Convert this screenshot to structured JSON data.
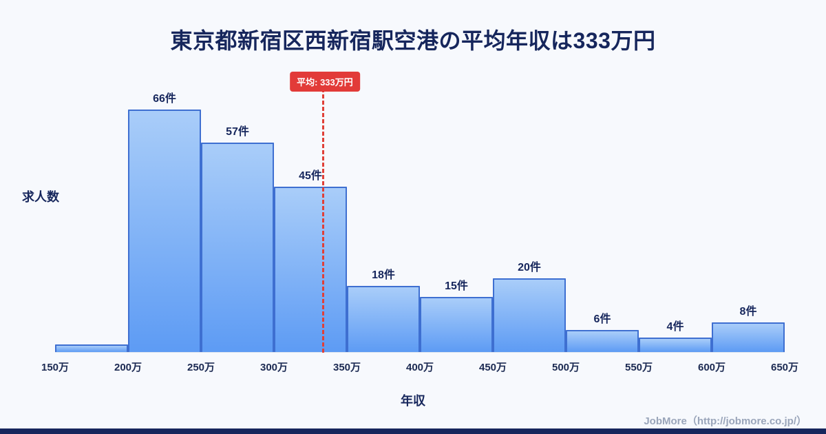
{
  "title": "東京都新宿区西新宿駅空港の平均年収は333万円",
  "y_axis_label": "求人数",
  "x_axis_label": "年収",
  "average": {
    "badge_label": "平均: 333万円",
    "value": 333
  },
  "footer": {
    "credit": "JobMore（http://jobmore.co.jp/）"
  },
  "colors": {
    "background": "#f7f9fd",
    "title_navy": "#16265c",
    "bar_fill_top": "#a9cdf9",
    "bar_fill_bottom": "#5d9bf4",
    "bar_border": "#3e6fd1",
    "average_red": "#e23b38",
    "footer_gray": "#9aa5ba",
    "bottom_strip_navy": "#16265c"
  },
  "chart_data": {
    "type": "bar",
    "title": "東京都新宿区西新宿駅空港の平均年収は333万円",
    "xlabel": "年収",
    "ylabel": "求人数",
    "x_ticks": [
      "150万",
      "200万",
      "250万",
      "300万",
      "350万",
      "400万",
      "450万",
      "500万",
      "550万",
      "600万",
      "650万"
    ],
    "x_tick_values": [
      150,
      200,
      250,
      300,
      350,
      400,
      450,
      500,
      550,
      600,
      650
    ],
    "x_range": [
      150,
      650
    ],
    "bins": [
      "150万-200万",
      "200万-250万",
      "250万-300万",
      "300万-350万",
      "350万-400万",
      "400万-450万",
      "450万-500万",
      "500万-550万",
      "550万-600万",
      "600万-650万"
    ],
    "counts": [
      2,
      66,
      57,
      45,
      18,
      15,
      20,
      6,
      4,
      8
    ],
    "bar_labels": [
      "",
      "66件",
      "57件",
      "45件",
      "18件",
      "15件",
      "20件",
      "6件",
      "4件",
      "8件"
    ],
    "unit": "件",
    "ylim": [
      0,
      66
    ],
    "grid": false,
    "legend": "none",
    "average_line": {
      "value": 333,
      "label": "平均: 333万円",
      "style": "dashed-red"
    }
  }
}
